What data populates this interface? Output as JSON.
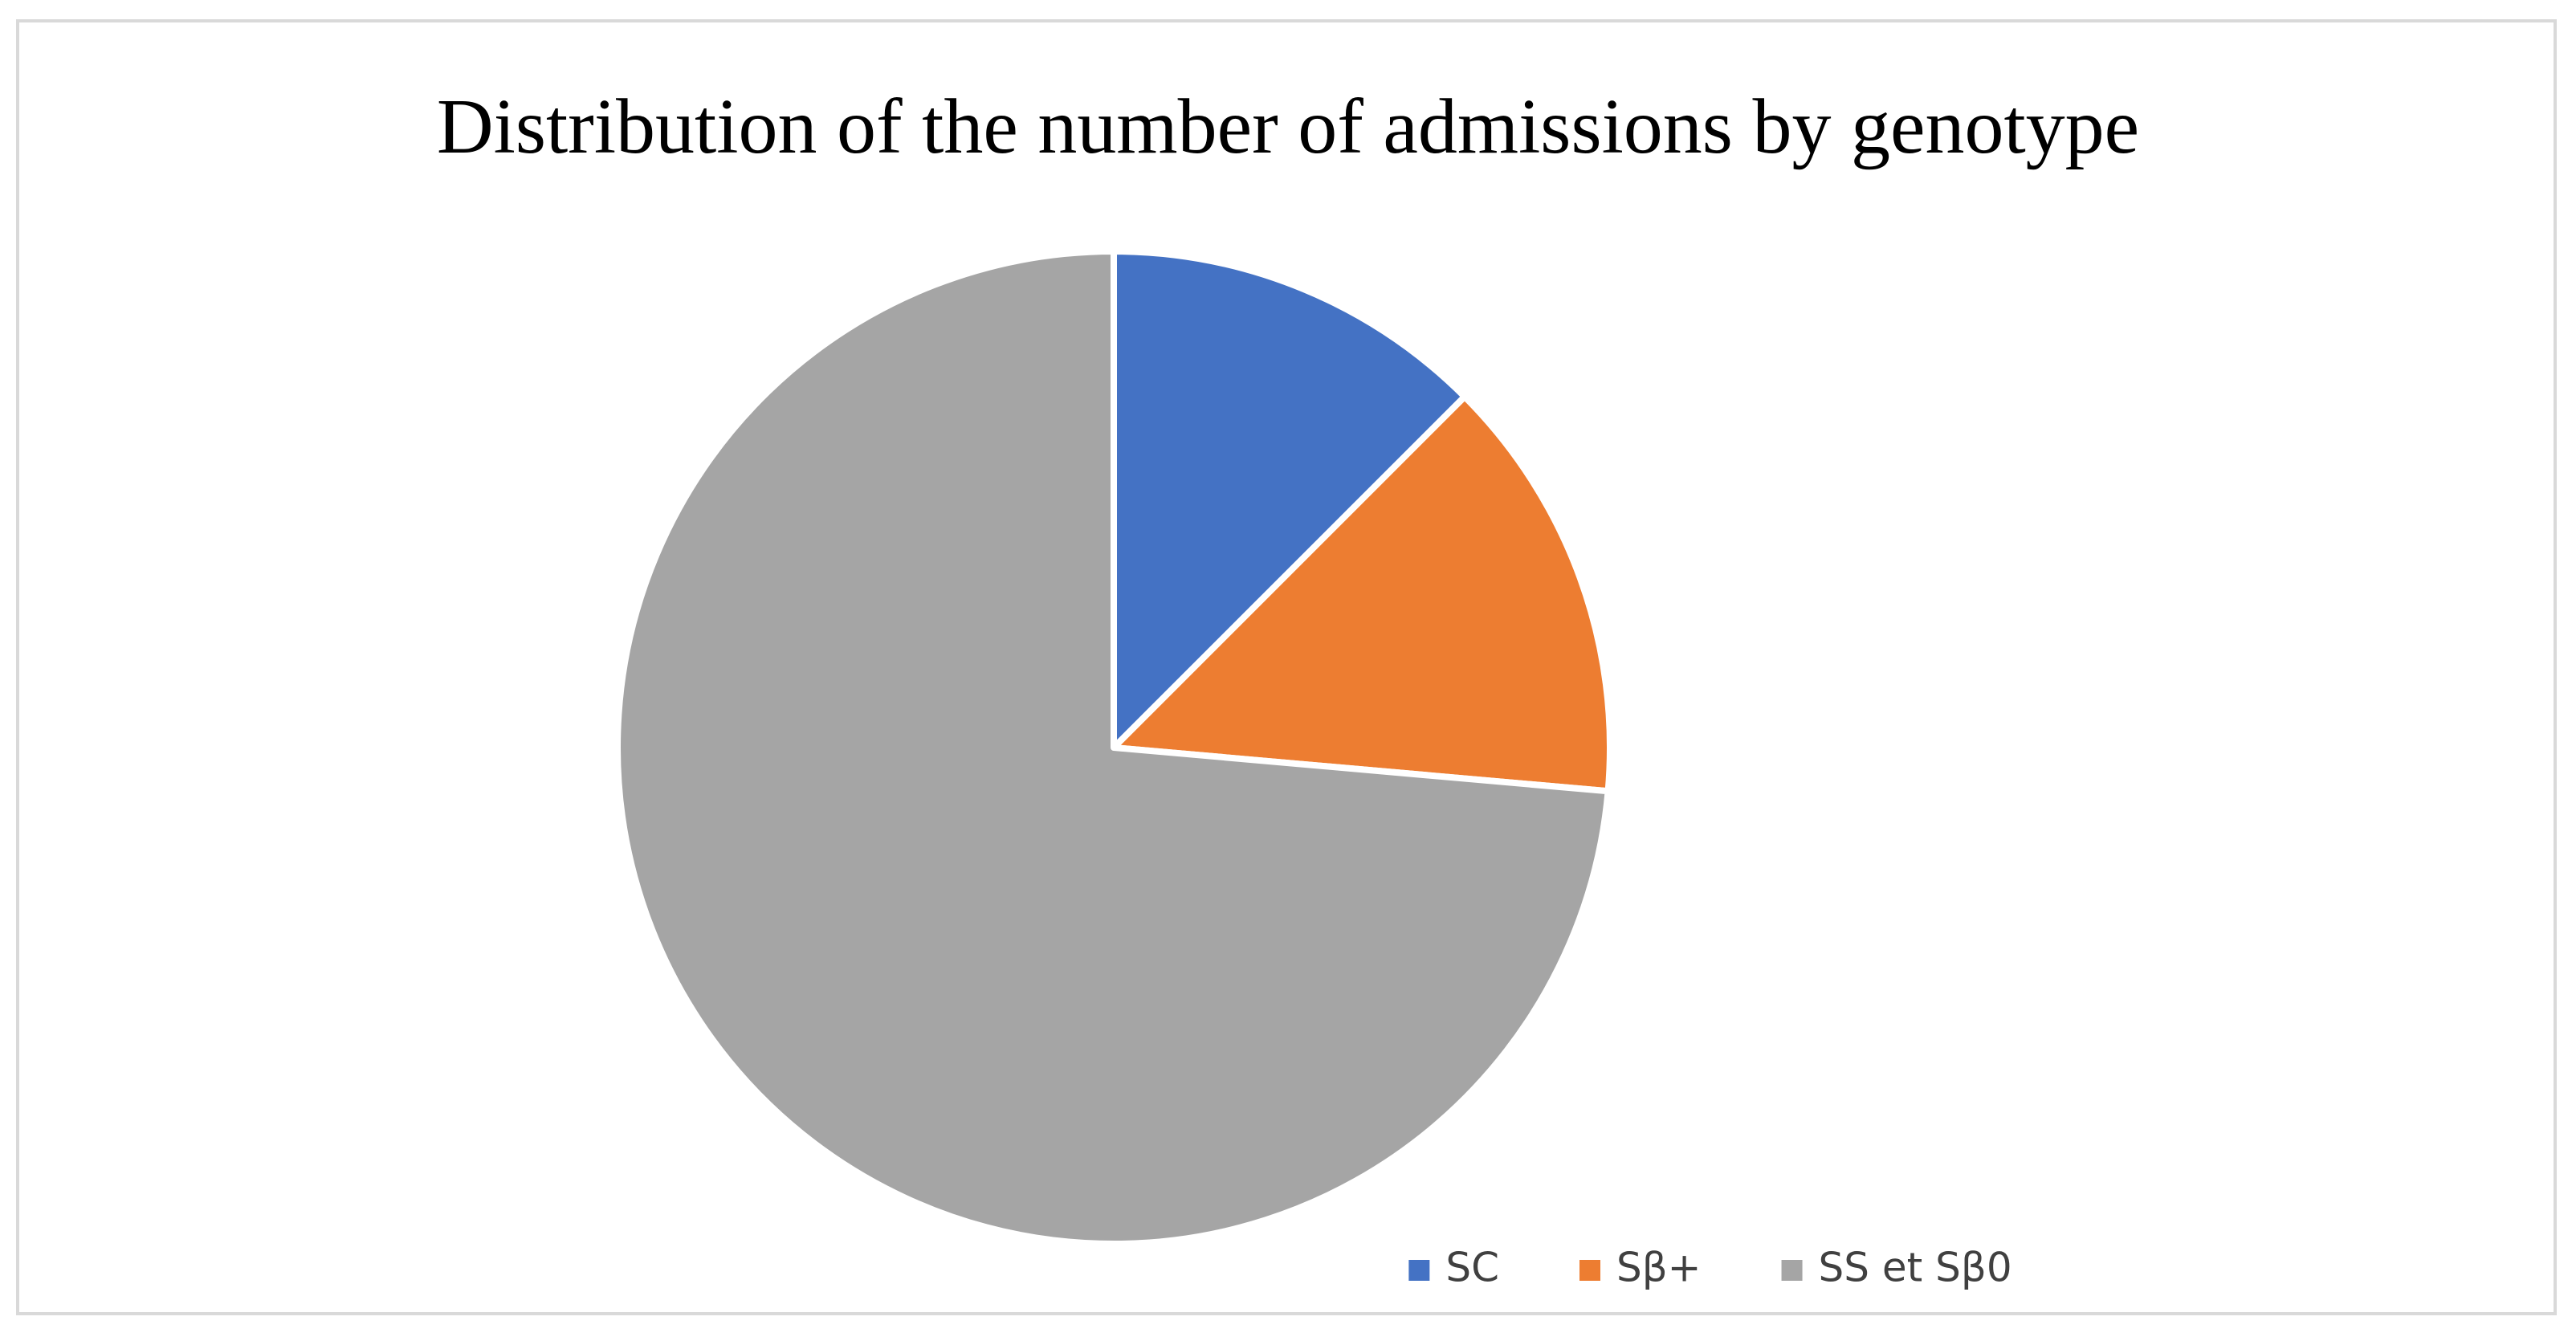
{
  "chart_data": {
    "type": "pie",
    "title": "Distribution of the number  of admissions by genotype",
    "categories": [
      "SC",
      "Sβ+",
      "SS et Sβ0"
    ],
    "values": [
      12.5,
      13.9,
      73.6
    ],
    "colors": [
      "#4472c4",
      "#ed7d31",
      "#a5a5a5"
    ],
    "legend": "bottom"
  }
}
